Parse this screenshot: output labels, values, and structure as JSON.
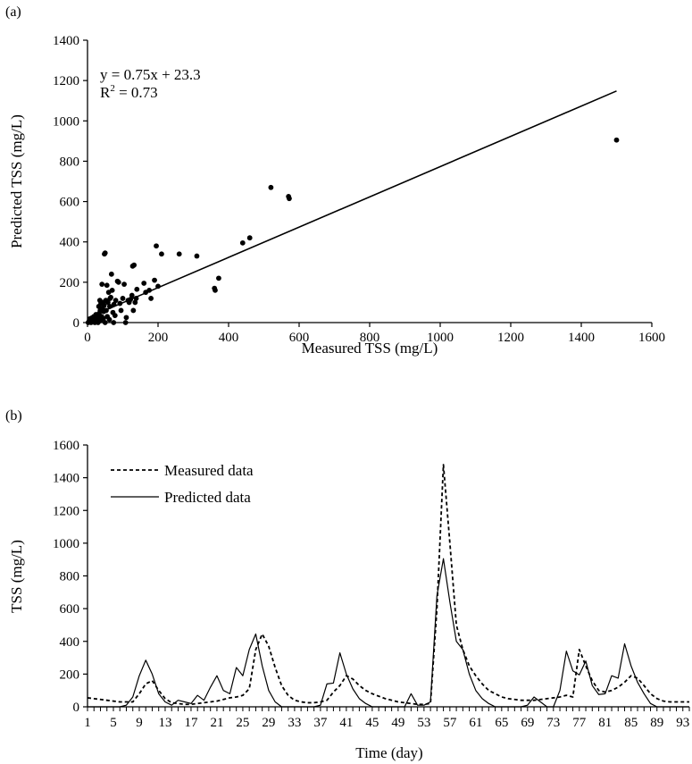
{
  "chart_data": [
    {
      "panel": "(a)",
      "type": "scatter",
      "xlabel": "Measured TSS (mg/L)",
      "ylabel": "Predicted TSS (mg/L)",
      "xlim": [
        0,
        1600
      ],
      "ylim": [
        0,
        1400
      ],
      "xticks": [
        "0",
        "200",
        "400",
        "600",
        "800",
        "1000",
        "1200",
        "1400",
        "1600"
      ],
      "yticks": [
        "0",
        "200",
        "400",
        "600",
        "800",
        "1000",
        "1200",
        "1400"
      ],
      "grid": false,
      "annotation": {
        "equation": "y = 0.75x + 23.3",
        "r2_label": "R",
        "r2_sup": "2",
        "r2_value": " = 0.73"
      },
      "trendline": {
        "slope": 0.75,
        "intercept": 23.3,
        "x_range": [
          0,
          1500
        ]
      },
      "points": [
        [
          2,
          0
        ],
        [
          4,
          3
        ],
        [
          5,
          8
        ],
        [
          6,
          2
        ],
        [
          7,
          12
        ],
        [
          8,
          5
        ],
        [
          9,
          15
        ],
        [
          10,
          0
        ],
        [
          11,
          8
        ],
        [
          12,
          20
        ],
        [
          13,
          4
        ],
        [
          14,
          10
        ],
        [
          15,
          25
        ],
        [
          16,
          3
        ],
        [
          17,
          14
        ],
        [
          18,
          30
        ],
        [
          19,
          6
        ],
        [
          20,
          18
        ],
        [
          21,
          0
        ],
        [
          22,
          9
        ],
        [
          24,
          40
        ],
        [
          25,
          5
        ],
        [
          26,
          22
        ],
        [
          27,
          12
        ],
        [
          28,
          35
        ],
        [
          30,
          0
        ],
        [
          31,
          16
        ],
        [
          32,
          80
        ],
        [
          33,
          45
        ],
        [
          35,
          110
        ],
        [
          36,
          60
        ],
        [
          37,
          10
        ],
        [
          38,
          95
        ],
        [
          40,
          30
        ],
        [
          41,
          190
        ],
        [
          42,
          70
        ],
        [
          44,
          100
        ],
        [
          45,
          20
        ],
        [
          46,
          55
        ],
        [
          47,
          85
        ],
        [
          48,
          340
        ],
        [
          50,
          345
        ],
        [
          50,
          0
        ],
        [
          52,
          110
        ],
        [
          53,
          60
        ],
        [
          55,
          185
        ],
        [
          56,
          30
        ],
        [
          58,
          100
        ],
        [
          60,
          150
        ],
        [
          62,
          15
        ],
        [
          63,
          80
        ],
        [
          64,
          120
        ],
        [
          66,
          125
        ],
        [
          68,
          240
        ],
        [
          70,
          160
        ],
        [
          72,
          50
        ],
        [
          74,
          0
        ],
        [
          75,
          90
        ],
        [
          78,
          35
        ],
        [
          80,
          110
        ],
        [
          85,
          205
        ],
        [
          88,
          200
        ],
        [
          92,
          95
        ],
        [
          95,
          60
        ],
        [
          100,
          120
        ],
        [
          104,
          190
        ],
        [
          108,
          0
        ],
        [
          110,
          25
        ],
        [
          115,
          110
        ],
        [
          118,
          100
        ],
        [
          122,
          115
        ],
        [
          126,
          135
        ],
        [
          128,
          280
        ],
        [
          130,
          60
        ],
        [
          132,
          285
        ],
        [
          135,
          100
        ],
        [
          138,
          120
        ],
        [
          140,
          165
        ],
        [
          160,
          195
        ],
        [
          165,
          150
        ],
        [
          175,
          160
        ],
        [
          180,
          120
        ],
        [
          190,
          210
        ],
        [
          195,
          380
        ],
        [
          200,
          180
        ],
        [
          210,
          340
        ],
        [
          260,
          340
        ],
        [
          310,
          330
        ],
        [
          360,
          170
        ],
        [
          362,
          160
        ],
        [
          372,
          220
        ],
        [
          440,
          395
        ],
        [
          460,
          420
        ],
        [
          520,
          670
        ],
        [
          570,
          625
        ],
        [
          572,
          615
        ],
        [
          1500,
          905
        ]
      ]
    },
    {
      "panel": "(b)",
      "type": "line",
      "xlabel": "Time (day)",
      "ylabel": "TSS (mg/L)",
      "xlim": [
        1,
        94
      ],
      "ylim": [
        0,
        1600
      ],
      "xticks": [
        "1",
        "5",
        "9",
        "13",
        "17",
        "21",
        "25",
        "29",
        "33",
        "37",
        "41",
        "45",
        "49",
        "53",
        "57",
        "61",
        "65",
        "69",
        "73",
        "77",
        "81",
        "85",
        "89",
        "93"
      ],
      "yticks": [
        "0",
        "200",
        "400",
        "600",
        "800",
        "1000",
        "1200",
        "1400",
        "1600"
      ],
      "grid": false,
      "legend_position": "top-left",
      "series": [
        {
          "name": "Measured data",
          "style": "dashed",
          "x": [
            1,
            2,
            3,
            4,
            5,
            6,
            7,
            8,
            9,
            10,
            11,
            12,
            13,
            14,
            15,
            16,
            17,
            18,
            19,
            20,
            21,
            22,
            23,
            24,
            25,
            26,
            27,
            28,
            29,
            30,
            31,
            32,
            33,
            34,
            35,
            36,
            37,
            38,
            39,
            40,
            41,
            42,
            43,
            44,
            45,
            46,
            47,
            48,
            49,
            50,
            51,
            52,
            53,
            54,
            55,
            56,
            57,
            58,
            59,
            60,
            61,
            62,
            63,
            64,
            65,
            66,
            67,
            68,
            69,
            70,
            71,
            72,
            73,
            74,
            75,
            76,
            77,
            78,
            79,
            80,
            81,
            82,
            83,
            84,
            85,
            86,
            87,
            88,
            89,
            90,
            91,
            92,
            93,
            94
          ],
          "values": [
            55,
            50,
            45,
            40,
            35,
            30,
            30,
            30,
            80,
            140,
            160,
            100,
            50,
            25,
            20,
            15,
            15,
            20,
            25,
            30,
            35,
            45,
            55,
            60,
            70,
            110,
            350,
            445,
            370,
            240,
            130,
            70,
            40,
            30,
            25,
            25,
            30,
            40,
            90,
            130,
            190,
            170,
            130,
            100,
            80,
            65,
            50,
            40,
            30,
            25,
            20,
            15,
            15,
            20,
            600,
            1480,
            1000,
            500,
            350,
            250,
            190,
            140,
            100,
            80,
            60,
            50,
            45,
            40,
            40,
            40,
            45,
            50,
            55,
            60,
            70,
            60,
            350,
            250,
            160,
            100,
            90,
            100,
            120,
            150,
            190,
            175,
            130,
            80,
            50,
            35,
            30,
            30,
            30,
            30
          ]
        },
        {
          "name": "Predicted data",
          "style": "solid",
          "x": [
            1,
            2,
            3,
            4,
            5,
            6,
            7,
            8,
            9,
            10,
            11,
            12,
            13,
            14,
            15,
            16,
            17,
            18,
            19,
            20,
            21,
            22,
            23,
            24,
            25,
            26,
            27,
            28,
            29,
            30,
            31,
            32,
            33,
            34,
            35,
            36,
            37,
            38,
            39,
            40,
            41,
            42,
            43,
            44,
            45,
            46,
            47,
            48,
            49,
            50,
            51,
            52,
            53,
            54,
            55,
            56,
            57,
            58,
            59,
            60,
            61,
            62,
            63,
            64,
            65,
            66,
            67,
            68,
            69,
            70,
            71,
            72,
            73,
            74,
            75,
            76,
            77,
            78,
            79,
            80,
            81,
            82,
            83,
            84,
            85,
            86,
            87,
            88,
            89,
            90,
            91,
            92,
            93,
            94
          ],
          "values": [
            0,
            0,
            0,
            0,
            0,
            0,
            10,
            60,
            190,
            285,
            200,
            80,
            30,
            10,
            40,
            30,
            20,
            70,
            40,
            120,
            190,
            100,
            80,
            240,
            190,
            350,
            445,
            250,
            100,
            30,
            0,
            0,
            0,
            0,
            0,
            0,
            10,
            140,
            145,
            330,
            200,
            110,
            50,
            20,
            0,
            0,
            0,
            0,
            0,
            0,
            80,
            10,
            10,
            30,
            680,
            905,
            640,
            400,
            350,
            200,
            100,
            50,
            20,
            0,
            0,
            0,
            0,
            0,
            10,
            60,
            30,
            0,
            0,
            100,
            340,
            220,
            195,
            280,
            130,
            75,
            80,
            190,
            175,
            385,
            250,
            150,
            80,
            20,
            0,
            0,
            0,
            0,
            0,
            0
          ]
        }
      ]
    }
  ]
}
